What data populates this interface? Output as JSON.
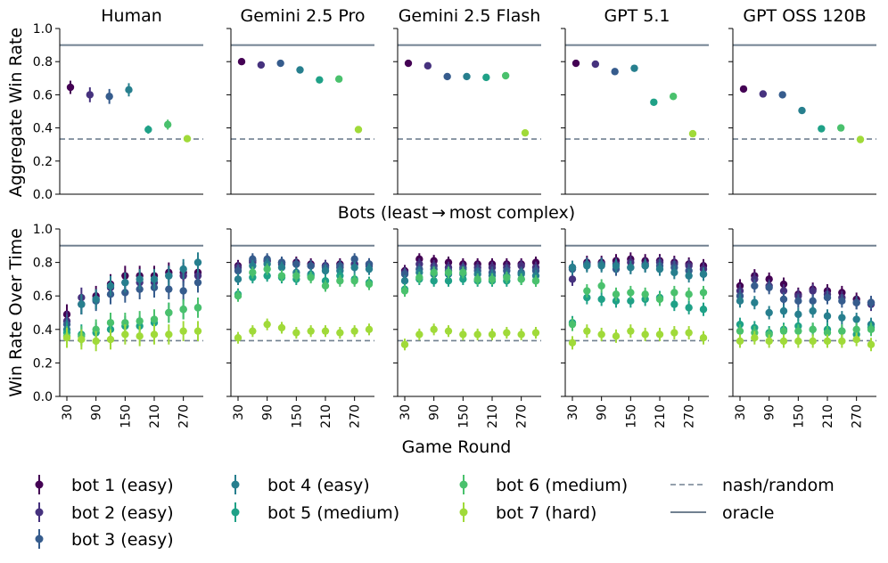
{
  "figure": {
    "top_ylabel": "Aggregate Win Rate",
    "bottom_ylabel": "Win Rate Over Time",
    "middle_xlabel": "Bots (least → most complex)",
    "bottom_xlabel": "Game Round"
  },
  "colors": {
    "bot1": "#440154",
    "bot2": "#46327e",
    "bot3": "#365c8d",
    "bot4": "#277f8e",
    "bot5": "#1fa187",
    "bot6": "#4ac16d",
    "bot7": "#a0da39",
    "reference_line": "#708090"
  },
  "legend": {
    "entries": [
      {
        "label": "bot 1 (easy)",
        "type": "marker",
        "color": "#440154"
      },
      {
        "label": "bot 2 (easy)",
        "type": "marker",
        "color": "#46327e"
      },
      {
        "label": "bot 3 (easy)",
        "type": "marker",
        "color": "#365c8d"
      },
      {
        "label": "bot 4 (easy)",
        "type": "marker",
        "color": "#277f8e"
      },
      {
        "label": "bot 5 (medium)",
        "type": "marker",
        "color": "#1fa187"
      },
      {
        "label": "bot 6 (medium)",
        "type": "marker",
        "color": "#4ac16d"
      },
      {
        "label": "bot 7 (hard)",
        "type": "marker",
        "color": "#a0da39"
      },
      {
        "label": "nash/random",
        "type": "dashed"
      },
      {
        "label": "oracle",
        "type": "solid"
      }
    ]
  },
  "chart_data": [
    {
      "type": "scatter",
      "row": "aggregate",
      "ylabel": "Aggregate Win Rate",
      "xlabel": "Bots (least → most complex)",
      "ylim": [
        0,
        1.0
      ],
      "yticks": [
        0.0,
        0.2,
        0.4,
        0.6,
        0.8,
        1.0
      ],
      "ytick_labels": [
        "0.0",
        "0.2",
        "0.4",
        "0.6",
        "0.8",
        "1.0"
      ],
      "reference_lines": {
        "oracle": 0.9,
        "nash_random": 0.333
      },
      "panels": [
        {
          "title": "Human",
          "values": [
            0.645,
            0.6,
            0.59,
            0.63,
            0.39,
            0.42,
            0.335
          ],
          "errors": [
            0.04,
            0.045,
            0.045,
            0.04,
            0.025,
            0.03,
            0.012
          ]
        },
        {
          "title": "Gemini 2.5 Pro",
          "values": [
            0.8,
            0.78,
            0.79,
            0.75,
            0.69,
            0.695,
            0.39
          ],
          "errors": [
            0.012,
            0.012,
            0.012,
            0.013,
            0.013,
            0.013,
            0.012
          ]
        },
        {
          "title": "Gemini 2.5 Flash",
          "values": [
            0.79,
            0.775,
            0.71,
            0.71,
            0.705,
            0.715,
            0.37
          ],
          "errors": [
            0.012,
            0.012,
            0.013,
            0.013,
            0.013,
            0.013,
            0.012
          ]
        },
        {
          "title": "GPT 5.1",
          "values": [
            0.79,
            0.785,
            0.74,
            0.76,
            0.555,
            0.59,
            0.365
          ],
          "errors": [
            0.012,
            0.012,
            0.013,
            0.013,
            0.014,
            0.014,
            0.012
          ]
        },
        {
          "title": "GPT OSS 120B",
          "values": [
            0.635,
            0.605,
            0.6,
            0.505,
            0.395,
            0.4,
            0.33
          ],
          "errors": [
            0.012,
            0.012,
            0.013,
            0.02,
            0.012,
            0.012,
            0.012
          ]
        }
      ]
    },
    {
      "type": "scatter",
      "row": "over_time",
      "ylabel": "Win Rate Over Time",
      "xlabel": "Game Round",
      "xlim": [
        20,
        300
      ],
      "xticks": [
        30,
        90,
        150,
        210,
        270
      ],
      "x": [
        30,
        60,
        90,
        120,
        150,
        180,
        210,
        240,
        270,
        300
      ],
      "ylim": [
        0,
        1.0
      ],
      "yticks": [
        0.0,
        0.2,
        0.4,
        0.6,
        0.8,
        1.0
      ],
      "ytick_labels": [
        "0.0",
        "0.2",
        "0.4",
        "0.6",
        "0.8",
        "1.0"
      ],
      "reference_lines": {
        "oracle": 0.9,
        "nash_random": 0.333
      },
      "panels": [
        {
          "title": "Human",
          "error": 0.06,
          "series": [
            {
              "name": "bot 1 (easy)",
              "values": [
                0.49,
                0.55,
                0.6,
                0.67,
                0.72,
                0.72,
                0.72,
                0.74,
                0.74,
                0.74
              ]
            },
            {
              "name": "bot 2 (easy)",
              "values": [
                0.45,
                0.59,
                0.58,
                0.65,
                0.68,
                0.68,
                0.68,
                0.72,
                0.72,
                0.72
              ]
            },
            {
              "name": "bot 3 (easy)",
              "values": [
                0.43,
                0.55,
                0.57,
                0.61,
                0.62,
                0.64,
                0.65,
                0.64,
                0.63,
                0.68
              ]
            },
            {
              "name": "bot 4 (easy)",
              "values": [
                0.4,
                0.55,
                0.58,
                0.66,
                0.68,
                0.7,
                0.7,
                0.72,
                0.76,
                0.8
              ]
            },
            {
              "name": "bot 5 (medium)",
              "values": [
                0.38,
                0.37,
                0.38,
                0.4,
                0.42,
                0.42,
                0.44,
                0.5,
                0.52,
                0.53
              ]
            },
            {
              "name": "bot 6 (medium)",
              "values": [
                0.36,
                0.36,
                0.4,
                0.44,
                0.44,
                0.45,
                0.46,
                0.5,
                0.52,
                0.53
              ]
            },
            {
              "name": "bot 7 (hard)",
              "values": [
                0.35,
                0.34,
                0.33,
                0.34,
                0.37,
                0.36,
                0.37,
                0.37,
                0.39,
                0.39
              ]
            }
          ]
        },
        {
          "title": "Gemini 2.5 Pro",
          "error": 0.035,
          "series": [
            {
              "name": "bot 1 (easy)",
              "values": [
                0.78,
                0.81,
                0.81,
                0.8,
                0.8,
                0.79,
                0.78,
                0.79,
                0.79,
                0.79
              ]
            },
            {
              "name": "bot 2 (easy)",
              "values": [
                0.77,
                0.8,
                0.81,
                0.79,
                0.79,
                0.78,
                0.78,
                0.77,
                0.79,
                0.78
              ]
            },
            {
              "name": "bot 3 (easy)",
              "values": [
                0.75,
                0.82,
                0.82,
                0.8,
                0.79,
                0.78,
                0.77,
                0.78,
                0.82,
                0.79
              ]
            },
            {
              "name": "bot 4 (easy)",
              "values": [
                0.7,
                0.78,
                0.79,
                0.77,
                0.74,
                0.73,
                0.75,
                0.75,
                0.77,
                0.76
              ]
            },
            {
              "name": "bot 5 (medium)",
              "values": [
                0.61,
                0.71,
                0.72,
                0.71,
                0.7,
                0.72,
                0.69,
                0.72,
                0.7,
                0.68
              ]
            },
            {
              "name": "bot 6 (medium)",
              "values": [
                0.6,
                0.74,
                0.76,
                0.72,
                0.72,
                0.71,
                0.66,
                0.69,
                0.69,
                0.67
              ]
            },
            {
              "name": "bot 7 (hard)",
              "values": [
                0.35,
                0.39,
                0.43,
                0.41,
                0.38,
                0.39,
                0.39,
                0.38,
                0.39,
                0.4
              ]
            }
          ]
        },
        {
          "title": "Gemini 2.5 Flash",
          "error": 0.035,
          "series": [
            {
              "name": "bot 1 (easy)",
              "values": [
                0.75,
                0.82,
                0.81,
                0.8,
                0.79,
                0.79,
                0.79,
                0.79,
                0.79,
                0.8
              ]
            },
            {
              "name": "bot 2 (easy)",
              "values": [
                0.74,
                0.79,
                0.78,
                0.77,
                0.77,
                0.77,
                0.77,
                0.77,
                0.78,
                0.77
              ]
            },
            {
              "name": "bot 3 (easy)",
              "values": [
                0.73,
                0.76,
                0.76,
                0.75,
                0.76,
                0.75,
                0.74,
                0.75,
                0.74,
                0.75
              ]
            },
            {
              "name": "bot 4 (easy)",
              "values": [
                0.69,
                0.74,
                0.73,
                0.73,
                0.73,
                0.73,
                0.72,
                0.72,
                0.73,
                0.72
              ]
            },
            {
              "name": "bot 5 (medium)",
              "values": [
                0.64,
                0.7,
                0.69,
                0.69,
                0.7,
                0.69,
                0.69,
                0.69,
                0.7,
                0.69
              ]
            },
            {
              "name": "bot 6 (medium)",
              "values": [
                0.63,
                0.71,
                0.74,
                0.74,
                0.74,
                0.7,
                0.7,
                0.71,
                0.7,
                0.69
              ]
            },
            {
              "name": "bot 7 (hard)",
              "values": [
                0.31,
                0.37,
                0.4,
                0.39,
                0.37,
                0.37,
                0.37,
                0.38,
                0.37,
                0.38
              ]
            }
          ]
        },
        {
          "title": "GPT 5.1",
          "error": 0.04,
          "series": [
            {
              "name": "bot 1 (easy)",
              "values": [
                0.77,
                0.8,
                0.8,
                0.81,
                0.82,
                0.81,
                0.81,
                0.8,
                0.79,
                0.78
              ]
            },
            {
              "name": "bot 2 (easy)",
              "values": [
                0.7,
                0.79,
                0.79,
                0.79,
                0.8,
                0.79,
                0.8,
                0.79,
                0.78,
                0.76
              ]
            },
            {
              "name": "bot 3 (easy)",
              "values": [
                0.76,
                0.79,
                0.79,
                0.76,
                0.77,
                0.78,
                0.78,
                0.77,
                0.75,
                0.73
              ]
            },
            {
              "name": "bot 4 (easy)",
              "values": [
                0.77,
                0.78,
                0.78,
                0.78,
                0.77,
                0.78,
                0.76,
                0.74,
                0.72,
                0.73
              ]
            },
            {
              "name": "bot 5 (medium)",
              "values": [
                0.44,
                0.59,
                0.58,
                0.57,
                0.57,
                0.58,
                0.59,
                0.55,
                0.53,
                0.52
              ]
            },
            {
              "name": "bot 6 (medium)",
              "values": [
                0.43,
                0.63,
                0.66,
                0.61,
                0.62,
                0.61,
                0.58,
                0.62,
                0.61,
                0.62
              ]
            },
            {
              "name": "bot 7 (hard)",
              "values": [
                0.32,
                0.39,
                0.37,
                0.36,
                0.39,
                0.37,
                0.37,
                0.38,
                0.38,
                0.35
              ]
            }
          ]
        },
        {
          "title": "GPT OSS 120B",
          "error": 0.04,
          "series": [
            {
              "name": "bot 1 (easy)",
              "values": [
                0.66,
                0.72,
                0.7,
                0.67,
                0.61,
                0.64,
                0.63,
                0.62,
                0.58,
                0.56
              ]
            },
            {
              "name": "bot 2 (easy)",
              "values": [
                0.63,
                0.7,
                0.66,
                0.63,
                0.6,
                0.63,
                0.61,
                0.59,
                0.56,
                0.55
              ]
            },
            {
              "name": "bot 3 (easy)",
              "values": [
                0.6,
                0.66,
                0.65,
                0.58,
                0.57,
                0.57,
                0.59,
                0.57,
                0.56,
                0.56
              ]
            },
            {
              "name": "bot 4 (easy)",
              "values": [
                0.57,
                0.56,
                0.5,
                0.51,
                0.49,
                0.51,
                0.48,
                0.47,
                0.46,
                0.43
              ]
            },
            {
              "name": "bot 5 (medium)",
              "values": [
                0.43,
                0.41,
                0.38,
                0.4,
                0.42,
                0.4,
                0.4,
                0.39,
                0.37,
                0.41
              ]
            },
            {
              "name": "bot 6 (medium)",
              "values": [
                0.39,
                0.38,
                0.37,
                0.39,
                0.39,
                0.4,
                0.38,
                0.39,
                0.4,
                0.4
              ]
            },
            {
              "name": "bot 7 (hard)",
              "values": [
                0.33,
                0.35,
                0.33,
                0.33,
                0.33,
                0.33,
                0.33,
                0.33,
                0.34,
                0.31
              ]
            }
          ]
        }
      ]
    }
  ]
}
